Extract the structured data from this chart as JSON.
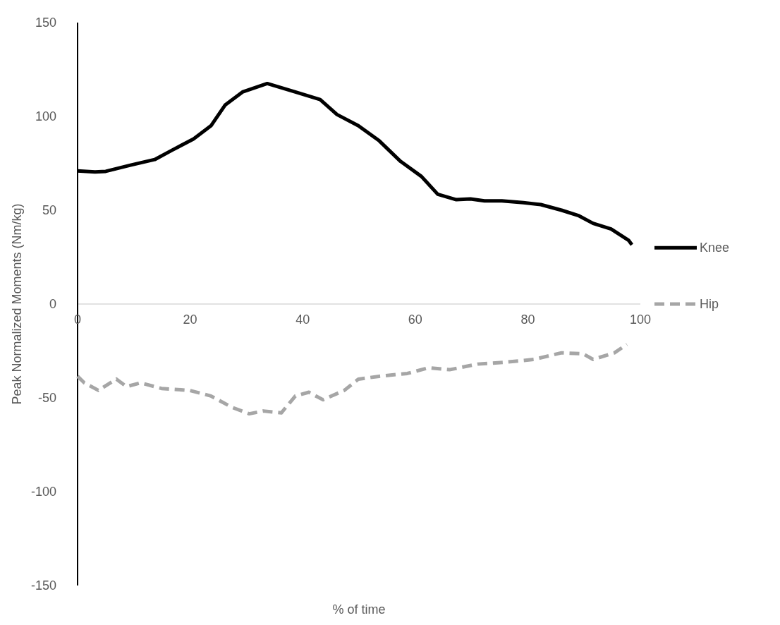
{
  "chart_data": {
    "type": "line",
    "xlabel": "% of time",
    "ylabel": "Peak Normalized Moments (Nm/kg)",
    "xlim": [
      0,
      100
    ],
    "xticks": [
      0,
      20,
      40,
      60,
      80,
      100
    ],
    "ylim": [
      -150,
      150
    ],
    "yticks": [
      -150,
      -100,
      -50,
      0,
      50,
      100,
      150
    ],
    "grid": false,
    "legend": "right",
    "series": [
      {
        "name": "Knee",
        "color": "#000000",
        "line_style": "solid",
        "x": [
          0,
          3.1,
          5,
          9.4,
          13.7,
          16.8,
          20.6,
          23.7,
          26.2,
          29.3,
          33.7,
          38.7,
          43.1,
          46.1,
          49.9,
          53.6,
          57.4,
          61.1,
          64,
          67.3,
          69.8,
          72.3,
          75.4,
          79.2,
          82.3,
          86,
          89.1,
          91.6,
          94.8,
          97.9,
          98.5
        ],
        "values": [
          71,
          70.4,
          70.7,
          74,
          77,
          82,
          88,
          95,
          106,
          113,
          117.5,
          113,
          109,
          101,
          95,
          87,
          76,
          68,
          58.5,
          55.6,
          56,
          55,
          55,
          54,
          53,
          50,
          47,
          43,
          40,
          34,
          31.6
        ]
      },
      {
        "name": "Hip",
        "color": "#a6a6a6",
        "line_style": "dashed",
        "x": [
          0,
          1.2,
          3.7,
          6.9,
          8.7,
          11.2,
          14.9,
          19.9,
          23.7,
          27.4,
          30.5,
          33,
          36.2,
          38.7,
          41.1,
          43.6,
          47.4,
          49.9,
          53.6,
          58.6,
          62.3,
          66.1,
          71.1,
          76.1,
          81.1,
          86,
          89.8,
          91.6,
          95.4,
          97.6
        ],
        "values": [
          -38.5,
          -42,
          -46,
          -40,
          -44,
          -42,
          -45,
          -46,
          -49,
          -55,
          -58.5,
          -57,
          -58,
          -49,
          -47,
          -51,
          -46,
          -40,
          -38.5,
          -37,
          -34,
          -35,
          -32,
          -31,
          -29.5,
          -26,
          -26.5,
          -29.5,
          -26,
          -21.5
        ]
      }
    ]
  }
}
